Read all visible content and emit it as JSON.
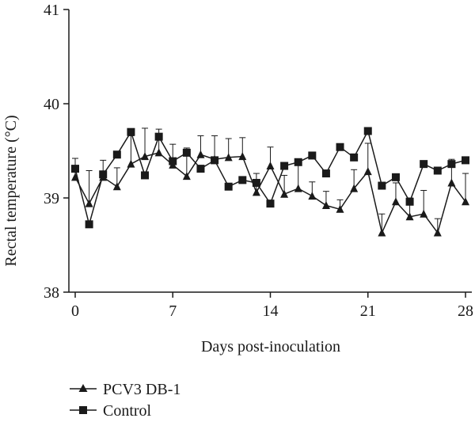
{
  "chart_data": {
    "type": "line",
    "title": "",
    "xlabel": "Days post-inoculation",
    "ylabel": "Rectal temperature (°C)",
    "xlim": [
      0,
      28
    ],
    "ylim": [
      38,
      41
    ],
    "xticks": [
      0,
      7,
      14,
      21,
      28
    ],
    "xtick_labels": [
      "0",
      "7",
      "14",
      "21",
      "28"
    ],
    "yticks": [
      38,
      39,
      40,
      41
    ],
    "ytick_labels": [
      "38",
      "39",
      "40",
      "41"
    ],
    "grid": false,
    "legend_position": "bottom-left",
    "x": [
      0,
      1,
      2,
      3,
      4,
      5,
      6,
      7,
      8,
      9,
      10,
      11,
      12,
      13,
      14,
      15,
      16,
      17,
      18,
      19,
      20,
      21,
      22,
      23,
      24,
      25,
      26,
      27,
      28
    ],
    "series": [
      {
        "name": "PCV3 DB-1",
        "marker": "triangle",
        "color": "#1a1a1a",
        "values": [
          39.22,
          38.94,
          39.22,
          39.12,
          39.36,
          39.44,
          39.48,
          39.35,
          39.23,
          39.46,
          39.41,
          39.43,
          39.44,
          39.06,
          39.34,
          39.04,
          39.1,
          39.02,
          38.92,
          38.88,
          39.1,
          39.28,
          38.63,
          38.96,
          38.8,
          38.83,
          38.63,
          39.16,
          38.96
        ],
        "errors": [
          0.2,
          0.35,
          0.18,
          0.2,
          0.3,
          0.3,
          0.25,
          0.22,
          0.3,
          0.2,
          0.25,
          0.2,
          0.2,
          0.2,
          0.2,
          0.2,
          0.25,
          0.15,
          0.15,
          0.1,
          0.2,
          0.3,
          0.2,
          0.2,
          0.2,
          0.25,
          0.15,
          0.25,
          0.3
        ]
      },
      {
        "name": "Control",
        "marker": "square",
        "color": "#1a1a1a",
        "values": [
          39.31,
          38.72,
          39.25,
          39.46,
          39.7,
          39.24,
          39.65,
          39.39,
          39.48,
          39.31,
          39.4,
          39.12,
          39.19,
          39.16,
          38.94,
          39.34,
          39.38,
          39.45,
          39.26,
          39.54,
          39.43,
          39.71,
          39.13,
          39.22,
          38.96,
          39.36,
          39.29,
          39.36,
          39.4
        ]
      }
    ]
  }
}
